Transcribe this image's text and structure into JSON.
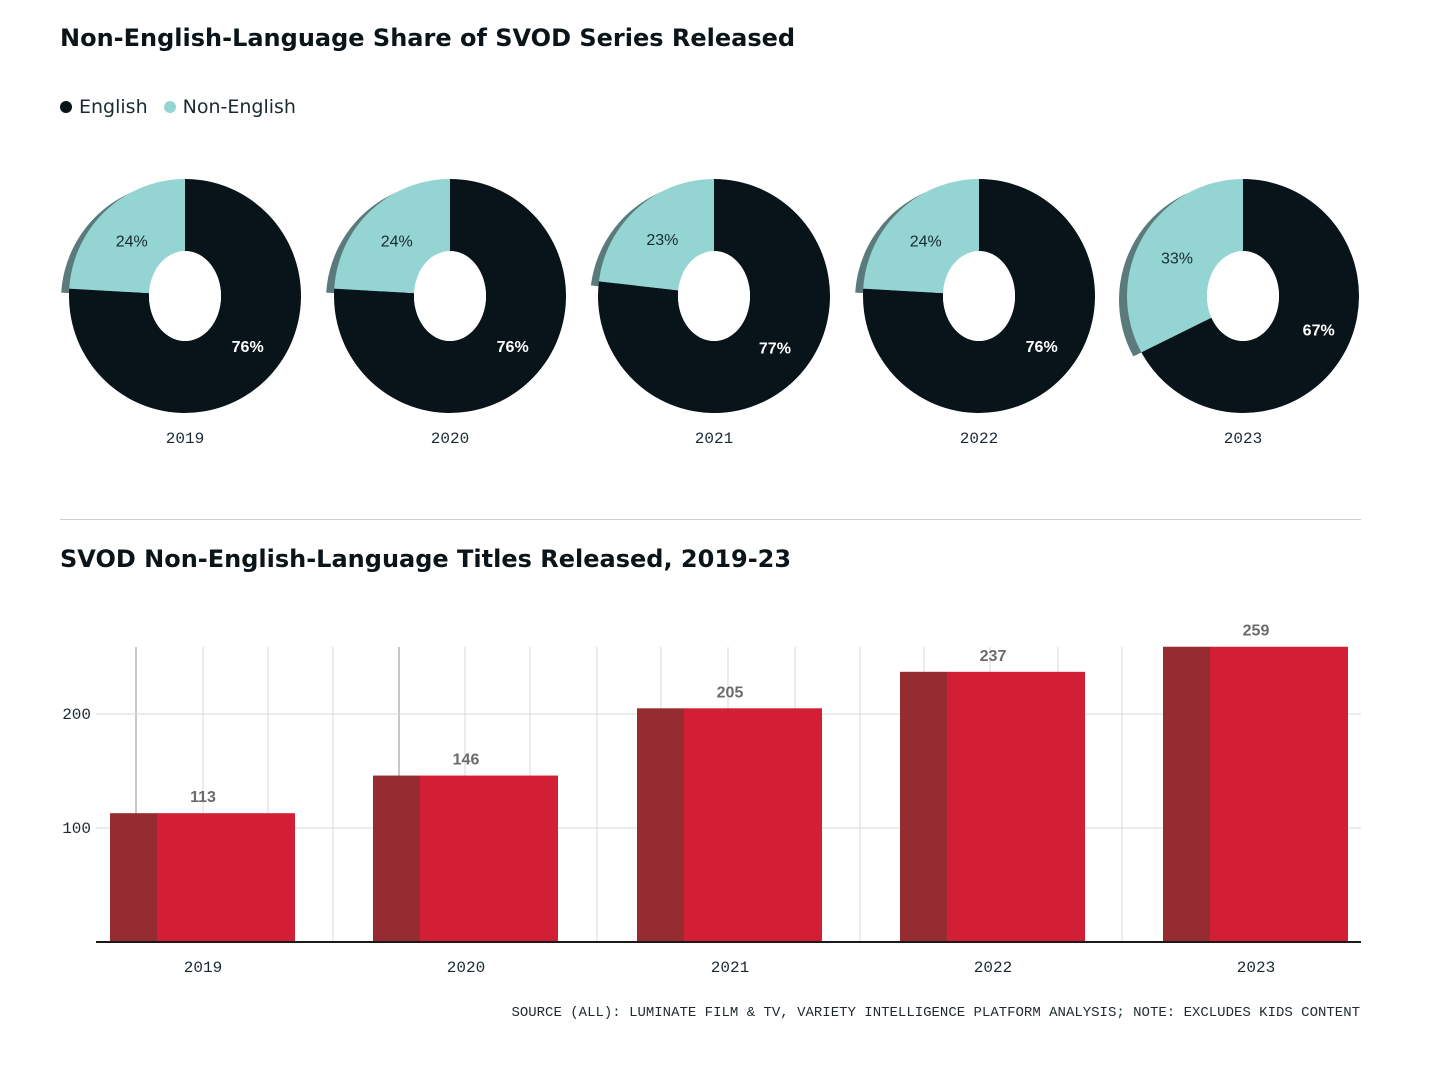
{
  "colors": {
    "english": "#08141a",
    "non_english": "#94d4d2",
    "bar_front": "#d21f36",
    "bar_side": "#962b31",
    "grid": "#d9d9d9"
  },
  "donut_section": {
    "title": "Non-English-Language Share of SVOD Series Released",
    "legend": [
      {
        "label": "English",
        "color": "#08141a"
      },
      {
        "label": "Non-English",
        "color": "#94d4d2"
      }
    ]
  },
  "bar_section": {
    "title": "SVOD Non-English-Language Titles Released, 2019-23"
  },
  "source_note": "SOURCE (ALL): LUMINATE FILM & TV, VARIETY INTELLIGENCE PLATFORM ANALYSIS; NOTE: EXCLUDES KIDS CONTENT",
  "chart_data": [
    {
      "type": "pie",
      "title": "Non-English-Language Share of SVOD Series Released",
      "series": [
        {
          "name": "English",
          "values": [
            76,
            76,
            77,
            76,
            67
          ]
        },
        {
          "name": "Non-English",
          "values": [
            24,
            24,
            23,
            24,
            33
          ]
        }
      ],
      "categories": [
        "2019",
        "2020",
        "2021",
        "2022",
        "2023"
      ],
      "value_labels": {
        "English": [
          "76%",
          "76%",
          "77%",
          "76%",
          "67%"
        ],
        "Non-English": [
          "24%",
          "24%",
          "23%",
          "24%",
          "33%"
        ]
      },
      "legend_position": "top-left"
    },
    {
      "type": "bar",
      "title": "SVOD Non-English-Language Titles Released, 2019-23",
      "categories": [
        "2019",
        "2020",
        "2021",
        "2022",
        "2023"
      ],
      "values": [
        113,
        146,
        205,
        237,
        259
      ],
      "value_labels": [
        "113",
        "146",
        "205",
        "237",
        "259"
      ],
      "yticks": [
        100,
        200
      ],
      "ytick_labels": [
        "100",
        "200"
      ],
      "ylim": [
        0,
        259
      ],
      "grid": true
    }
  ]
}
